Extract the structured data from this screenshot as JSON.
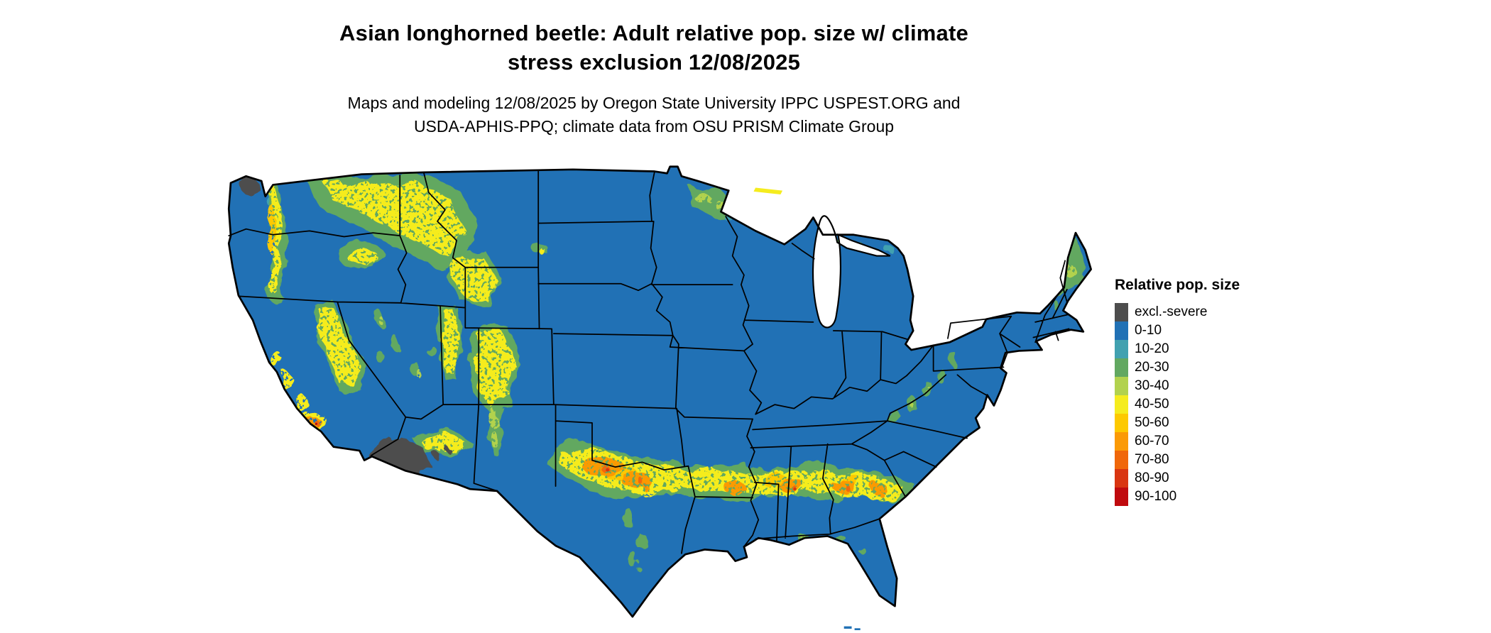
{
  "page": {
    "background": "#ffffff"
  },
  "header": {
    "title_line1": "Asian longhorned beetle: Adult relative pop. size w/ climate",
    "title_line2": "stress exclusion 12/08/2025",
    "subtitle_line1": "Maps and modeling 12/08/2025 by Oregon State University IPPC USPEST.ORG and",
    "subtitle_line2": "USDA-APHIS-PPQ; climate data from OSU PRISM Climate Group"
  },
  "map": {
    "region": "Contiguous United States",
    "land_default_class": "0-10",
    "water_color": "#ffffff",
    "state_border_color": "#000000"
  },
  "legend": {
    "title": "Relative pop. size",
    "entries": [
      {
        "label": "excl.-severe",
        "color": "#4d4d4d"
      },
      {
        "label": "0-10",
        "color": "#2171b5"
      },
      {
        "label": "10-20",
        "color": "#41a1b0"
      },
      {
        "label": "20-30",
        "color": "#62a861"
      },
      {
        "label": "30-40",
        "color": "#b2d24e"
      },
      {
        "label": "40-50",
        "color": "#f5ec1e"
      },
      {
        "label": "50-60",
        "color": "#fdc900"
      },
      {
        "label": "60-70",
        "color": "#fb9a06"
      },
      {
        "label": "70-80",
        "color": "#f0670a"
      },
      {
        "label": "80-90",
        "color": "#d93511"
      },
      {
        "label": "90-100",
        "color": "#c00a0e"
      }
    ]
  }
}
